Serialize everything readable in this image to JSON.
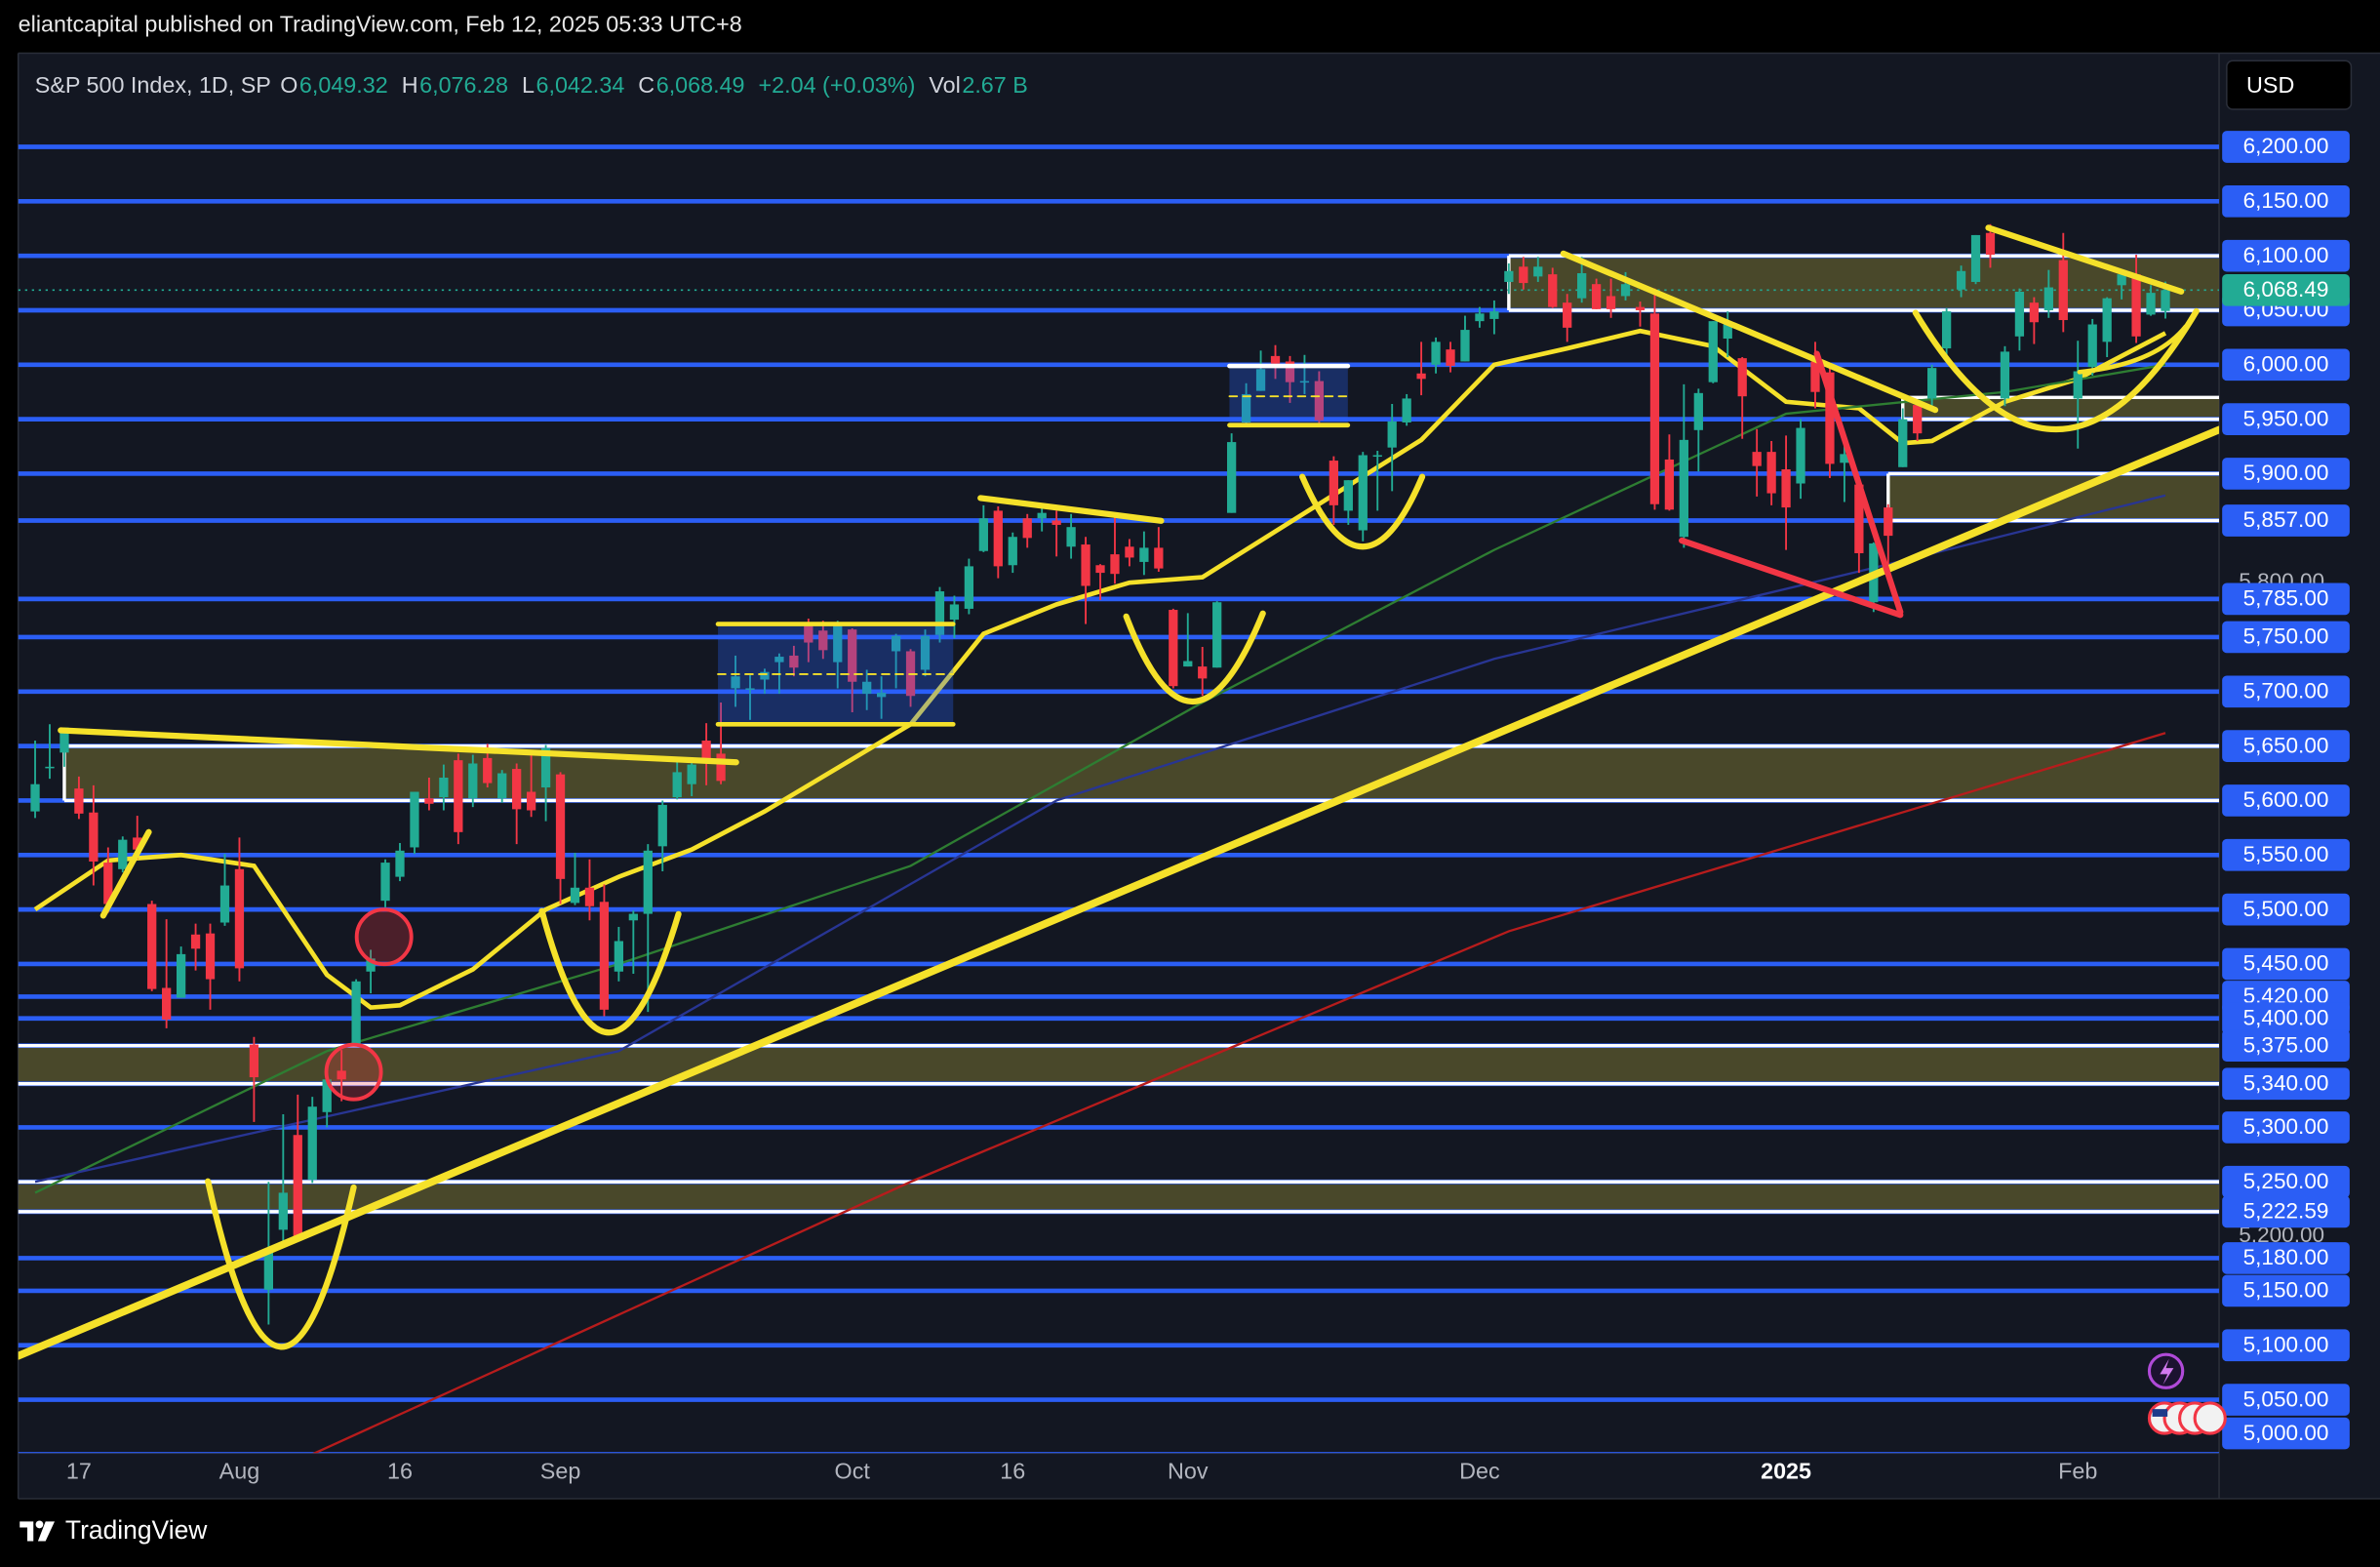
{
  "header": {
    "publisher": "eliantcapital published on TradingView.com, Feb 12, 2025 05:33 UTC+8",
    "currency": "USD",
    "brand": "TradingView"
  },
  "chart_data": {
    "type": "candlestick",
    "title": "S&P 500 Index, 1D, SP",
    "legend": [
      {
        "key": "O",
        "label": "6,049.32"
      },
      {
        "key": "H",
        "label": "6,076.28"
      },
      {
        "key": "L",
        "label": "6,042.34"
      },
      {
        "key": "C",
        "label": "6,068.49"
      },
      {
        "label": "+2.04 (+0.03%)"
      },
      {
        "key": "Vol",
        "label": "2.67 B"
      }
    ],
    "up_color": "#22ab94",
    "down_color": "#f23645",
    "ohlc": [
      [
        5590,
        5655,
        5584,
        5615
      ],
      [
        5630,
        5670,
        5620,
        5631
      ],
      [
        5644,
        5667,
        5631,
        5667
      ],
      [
        5611,
        5622,
        5583,
        5588
      ],
      [
        5589,
        5614,
        5522,
        5544
      ],
      [
        5543,
        5557,
        5497,
        5505
      ],
      [
        5537,
        5567,
        5534,
        5564
      ],
      [
        5566,
        5586,
        5546,
        5555
      ],
      [
        5505,
        5508,
        5425,
        5427
      ],
      [
        5428,
        5491,
        5391,
        5399
      ],
      [
        5419,
        5466,
        5419,
        5459
      ],
      [
        5477,
        5487,
        5444,
        5464
      ],
      [
        5478,
        5487,
        5408,
        5436
      ],
      [
        5488,
        5551,
        5485,
        5522
      ],
      [
        5537,
        5566,
        5434,
        5446
      ],
      [
        5376,
        5383,
        5305,
        5346
      ],
      [
        5151,
        5250,
        5119,
        5186
      ],
      [
        5206,
        5312,
        5193,
        5240
      ],
      [
        5293,
        5330,
        5195,
        5199
      ],
      [
        5252,
        5328,
        5249,
        5319
      ],
      [
        5314,
        5351,
        5300,
        5344
      ],
      [
        5352,
        5371,
        5324,
        5344
      ],
      [
        5376,
        5436,
        5376,
        5434
      ],
      [
        5443,
        5463,
        5423,
        5455
      ],
      [
        5508,
        5546,
        5502,
        5543
      ],
      [
        5530,
        5561,
        5526,
        5554
      ],
      [
        5557,
        5608,
        5551,
        5608
      ],
      [
        5602,
        5621,
        5591,
        5597
      ],
      [
        5603,
        5633,
        5591,
        5621
      ],
      [
        5637,
        5643,
        5560,
        5571
      ],
      [
        5602,
        5642,
        5594,
        5634
      ],
      [
        5639,
        5652,
        5612,
        5616
      ],
      [
        5602,
        5628,
        5598,
        5625
      ],
      [
        5629,
        5634,
        5560,
        5592
      ],
      [
        5608,
        5646,
        5585,
        5591
      ],
      [
        5612,
        5651,
        5581,
        5648
      ],
      [
        5624,
        5626,
        5505,
        5528
      ],
      [
        5506,
        5552,
        5504,
        5520
      ],
      [
        5520,
        5546,
        5490,
        5503
      ],
      [
        5507,
        5523,
        5402,
        5408
      ],
      [
        5443,
        5484,
        5434,
        5471
      ],
      [
        5490,
        5499,
        5441,
        5496
      ],
      [
        5496,
        5560,
        5406,
        5554
      ],
      [
        5558,
        5600,
        5535,
        5596
      ],
      [
        5603,
        5636,
        5601,
        5626
      ],
      [
        5615,
        5637,
        5604,
        5633
      ],
      [
        5655,
        5671,
        5614,
        5634
      ],
      [
        5643,
        5690,
        5615,
        5618
      ],
      [
        5703,
        5733,
        5686,
        5714
      ],
      [
        5702,
        5715,
        5674,
        5703
      ],
      [
        5711,
        5721,
        5698,
        5718
      ],
      [
        5727,
        5735,
        5698,
        5732
      ],
      [
        5733,
        5742,
        5714,
        5722
      ],
      [
        5762,
        5767,
        5727,
        5745
      ],
      [
        5756,
        5765,
        5730,
        5738
      ],
      [
        5727,
        5765,
        5703,
        5762
      ],
      [
        5757,
        5758,
        5681,
        5709
      ],
      [
        5698,
        5720,
        5683,
        5709
      ],
      [
        5695,
        5714,
        5675,
        5699
      ],
      [
        5737,
        5753,
        5703,
        5751
      ],
      [
        5737,
        5739,
        5686,
        5696
      ],
      [
        5720,
        5757,
        5714,
        5751
      ],
      [
        5752,
        5796,
        5745,
        5792
      ],
      [
        5766,
        5788,
        5749,
        5780
      ],
      [
        5776,
        5822,
        5771,
        5815
      ],
      [
        5829,
        5871,
        5828,
        5859
      ],
      [
        5866,
        5870,
        5804,
        5815
      ],
      [
        5816,
        5846,
        5809,
        5842
      ],
      [
        5859,
        5863,
        5832,
        5841
      ],
      [
        5859,
        5872,
        5847,
        5864
      ],
      [
        5857,
        5866,
        5824,
        5853
      ],
      [
        5833,
        5863,
        5822,
        5851
      ],
      [
        5835,
        5842,
        5762,
        5797
      ],
      [
        5816,
        5817,
        5784,
        5809
      ],
      [
        5826,
        5862,
        5799,
        5808
      ],
      [
        5833,
        5840,
        5815,
        5823
      ],
      [
        5819,
        5847,
        5807,
        5832
      ],
      [
        5832,
        5851,
        5810,
        5813
      ],
      [
        5775,
        5776,
        5703,
        5705
      ],
      [
        5723,
        5772,
        5723,
        5728
      ],
      [
        5723,
        5741,
        5696,
        5712
      ],
      [
        5722,
        5783,
        5722,
        5782
      ],
      [
        5864,
        5937,
        5864,
        5929
      ],
      [
        5947,
        5983,
        5945,
        5973
      ],
      [
        5976,
        6013,
        5976,
        5996
      ],
      [
        6008,
        6018,
        5987,
        6001
      ],
      [
        6003,
        6008,
        5965,
        5984
      ],
      [
        5985,
        6009,
        5973,
        5985
      ],
      [
        5985,
        5994,
        5944,
        5949
      ],
      [
        5912,
        5916,
        5853,
        5871
      ],
      [
        5866,
        5894,
        5853,
        5894
      ],
      [
        5848,
        5920,
        5838,
        5917
      ],
      [
        5917,
        5921,
        5866,
        5917
      ],
      [
        5924,
        5964,
        5884,
        5948
      ],
      [
        5947,
        5973,
        5944,
        5969
      ],
      [
        5992,
        6021,
        5972,
        5987
      ],
      [
        6000,
        6025,
        5992,
        6021
      ],
      [
        6014,
        6021,
        5993,
        5999
      ],
      [
        6003,
        6045,
        6003,
        6032
      ],
      [
        6040,
        6053,
        6034,
        6047
      ],
      [
        6042,
        6059,
        6028,
        6049
      ],
      [
        6076,
        6093,
        6065,
        6086
      ],
      [
        6090,
        6099,
        6069,
        6075
      ],
      [
        6081,
        6099,
        6076,
        6090
      ],
      [
        6083,
        6089,
        6052,
        6053
      ],
      [
        6057,
        6065,
        6021,
        6034
      ],
      [
        6061,
        6099,
        6057,
        6084
      ],
      [
        6074,
        6079,
        6051,
        6051
      ],
      [
        6063,
        6079,
        6043,
        6051
      ],
      [
        6063,
        6085,
        6059,
        6074
      ],
      [
        6053,
        6058,
        6035,
        6050
      ],
      [
        6047,
        6070,
        5867,
        5872
      ],
      [
        5913,
        5936,
        5866,
        5867
      ],
      [
        5842,
        5982,
        5832,
        5931
      ],
      [
        5940,
        5978,
        5902,
        5974
      ],
      [
        5984,
        6040,
        5983,
        6040
      ],
      [
        6024,
        6049,
        6007,
        6037
      ],
      [
        6006,
        6007,
        5932,
        5971
      ],
      [
        5920,
        5941,
        5879,
        5907
      ],
      [
        5920,
        5930,
        5871,
        5882
      ],
      [
        5904,
        5935,
        5830,
        5869
      ],
      [
        5891,
        5950,
        5877,
        5942
      ],
      [
        6003,
        6021,
        5960,
        5975
      ],
      [
        5993,
        6000,
        5896,
        5909
      ],
      [
        5910,
        5927,
        5874,
        5918
      ],
      [
        5890,
        5891,
        5809,
        5827
      ],
      [
        5782,
        5837,
        5773,
        5836
      ],
      [
        5869,
        5872,
        5808,
        5843
      ],
      [
        5906,
        5960,
        5906,
        5950
      ],
      [
        5963,
        5964,
        5930,
        5937
      ],
      [
        5969,
        6000,
        5960,
        5997
      ],
      [
        6015,
        6052,
        6003,
        6049
      ],
      [
        6069,
        6091,
        6062,
        6086
      ],
      [
        6076,
        6119,
        6074,
        6119
      ],
      [
        6121,
        6129,
        6089,
        6101
      ],
      [
        5969,
        6017,
        5962,
        6012
      ],
      [
        6026,
        6070,
        6013,
        6067
      ],
      [
        6057,
        6062,
        6019,
        6039
      ],
      [
        6050,
        6087,
        6043,
        6071
      ],
      [
        6096,
        6121,
        6030,
        6041
      ],
      [
        5969,
        6022,
        5923,
        5994
      ],
      [
        5998,
        6042,
        5990,
        6037
      ],
      [
        6021,
        6062,
        6007,
        6061
      ],
      [
        6073,
        6084,
        6060,
        6083
      ],
      [
        6083,
        6101,
        6020,
        6026
      ],
      [
        6046,
        6073,
        6045,
        6066
      ],
      [
        6049.32,
        6076.28,
        6042.34,
        6068.49
      ]
    ],
    "xlim": [
      -1.16,
      149.68
    ],
    "xticks": [
      {
        "value": 3,
        "label": "17"
      },
      {
        "value": 14,
        "label": "Aug"
      },
      {
        "value": 25,
        "label": "16"
      },
      {
        "value": 36,
        "label": "Sep"
      },
      {
        "value": 56,
        "label": "Oct"
      },
      {
        "value": 67,
        "label": "16"
      },
      {
        "value": 79,
        "label": "Nov"
      },
      {
        "value": 99,
        "label": "Dec"
      },
      {
        "value": 120,
        "label": "2025"
      },
      {
        "value": 140,
        "label": "Feb"
      }
    ],
    "ylim": [
      5001,
      6286
    ],
    "yticks": [
      {
        "value": 5800,
        "label": "5,800.00"
      },
      {
        "value": 5200,
        "label": "5,200.00"
      }
    ],
    "last_price_label": "6,068.49",
    "level_color": "#2b5ef5",
    "levels": [
      {
        "value": 6200,
        "label": "6,200.00"
      },
      {
        "value": 6150,
        "label": "6,150.00"
      },
      {
        "value": 6100,
        "label": "6,100.00"
      },
      {
        "value": 6050,
        "label": "6,050.00"
      },
      {
        "value": 6000,
        "label": "6,000.00"
      },
      {
        "value": 5950,
        "label": "5,950.00"
      },
      {
        "value": 5900,
        "label": "5,900.00"
      },
      {
        "value": 5857,
        "label": "5,857.00"
      },
      {
        "value": 5785,
        "label": "5,785.00"
      },
      {
        "value": 5750,
        "label": "5,750.00"
      },
      {
        "value": 5700,
        "label": "5,700.00"
      },
      {
        "value": 5650,
        "label": "5,650.00"
      },
      {
        "value": 5600,
        "label": "5,600.00"
      },
      {
        "value": 5550,
        "label": "5,550.00"
      },
      {
        "value": 5500,
        "label": "5,500.00"
      },
      {
        "value": 5450,
        "label": "5,450.00"
      },
      {
        "value": 5420,
        "label": "5,420.00"
      },
      {
        "value": 5400,
        "label": "5,400.00"
      },
      {
        "value": 5375,
        "label": "5,375.00"
      },
      {
        "value": 5340,
        "label": "5,340.00"
      },
      {
        "value": 5300,
        "label": "5,300.00"
      },
      {
        "value": 5250,
        "label": "5,250.00"
      },
      {
        "value": 5222.59,
        "label": "5,222.59"
      },
      {
        "value": 5180,
        "label": "5,180.00"
      },
      {
        "value": 5150,
        "label": "5,150.00"
      },
      {
        "value": 5100,
        "label": "5,100.00"
      },
      {
        "value": 5050,
        "label": "5,050.00"
      },
      {
        "value": 5000,
        "label": "5,000.00"
      }
    ],
    "zone_color": "#5c5a2e",
    "zones": [
      {
        "low": 6050,
        "high": 6100,
        "from": 101
      },
      {
        "low": 5950,
        "high": 5970,
        "from": 128
      },
      {
        "low": 5857,
        "high": 5900,
        "from": 127
      },
      {
        "low": 5600,
        "high": 5650,
        "from": 2
      },
      {
        "low": 5340,
        "high": 5375
      },
      {
        "low": 5222.59,
        "high": 5250
      }
    ],
    "moving_averages": [
      {
        "color": "#f5e12a",
        "x": [
          0,
          5,
          10,
          15,
          20,
          23,
          25,
          30,
          35,
          40,
          45,
          50,
          55,
          60,
          65,
          70,
          75,
          80,
          85,
          90,
          95,
          100,
          105,
          110,
          115,
          120,
          125,
          128,
          130,
          135,
          140,
          146
        ],
        "values": [
          5500,
          5545,
          5550,
          5540,
          5440,
          5410,
          5412,
          5445,
          5500,
          5530,
          5555,
          5590,
          5630,
          5670,
          5753,
          5780,
          5800,
          5805,
          5847,
          5889,
          5931,
          6000,
          6015,
          6031,
          6017,
          5966,
          5960,
          5928,
          5930,
          5966,
          5987,
          6029
        ]
      },
      {
        "color": "#2e7d32",
        "x": [
          0,
          20,
          40,
          60,
          80,
          100,
          120,
          135,
          146
        ],
        "values": [
          5240,
          5370,
          5450,
          5540,
          5690,
          5830,
          5955,
          5975,
          6000
        ]
      },
      {
        "color": "#283593",
        "x": [
          0,
          40,
          70,
          100,
          128,
          146
        ],
        "values": [
          5250,
          5370,
          5600,
          5730,
          5820,
          5880
        ]
      },
      {
        "color": "#b71c1c",
        "x": [
          19,
          60,
          101,
          146
        ],
        "values": [
          5000,
          5250,
          5480,
          5662
        ]
      }
    ]
  }
}
